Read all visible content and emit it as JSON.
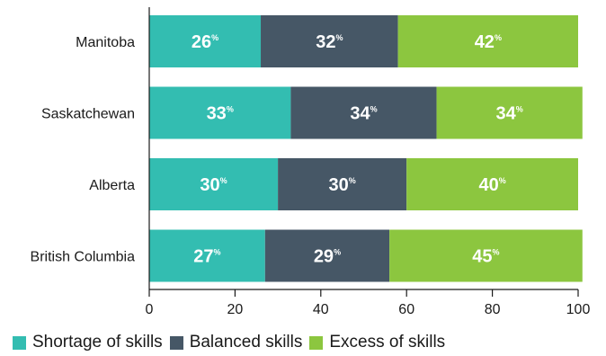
{
  "chart_data": {
    "type": "bar",
    "orientation": "horizontal",
    "stacked": true,
    "categories": [
      "Manitoba",
      "Saskatchewan",
      "Alberta",
      "British Columbia"
    ],
    "series": [
      {
        "name": "Shortage of skills",
        "color": "#33bdb1",
        "values": [
          26,
          33,
          30,
          27
        ]
      },
      {
        "name": "Balanced skills",
        "color": "#465766",
        "values": [
          32,
          34,
          30,
          29
        ]
      },
      {
        "name": "Excess of skills",
        "color": "#8cc63f",
        "values": [
          42,
          34,
          40,
          45
        ]
      }
    ],
    "value_suffix": "%",
    "xlim": [
      0,
      100
    ],
    "xticks": [
      0,
      20,
      40,
      60,
      80,
      100
    ],
    "legend_position": "bottom",
    "grid": false
  }
}
